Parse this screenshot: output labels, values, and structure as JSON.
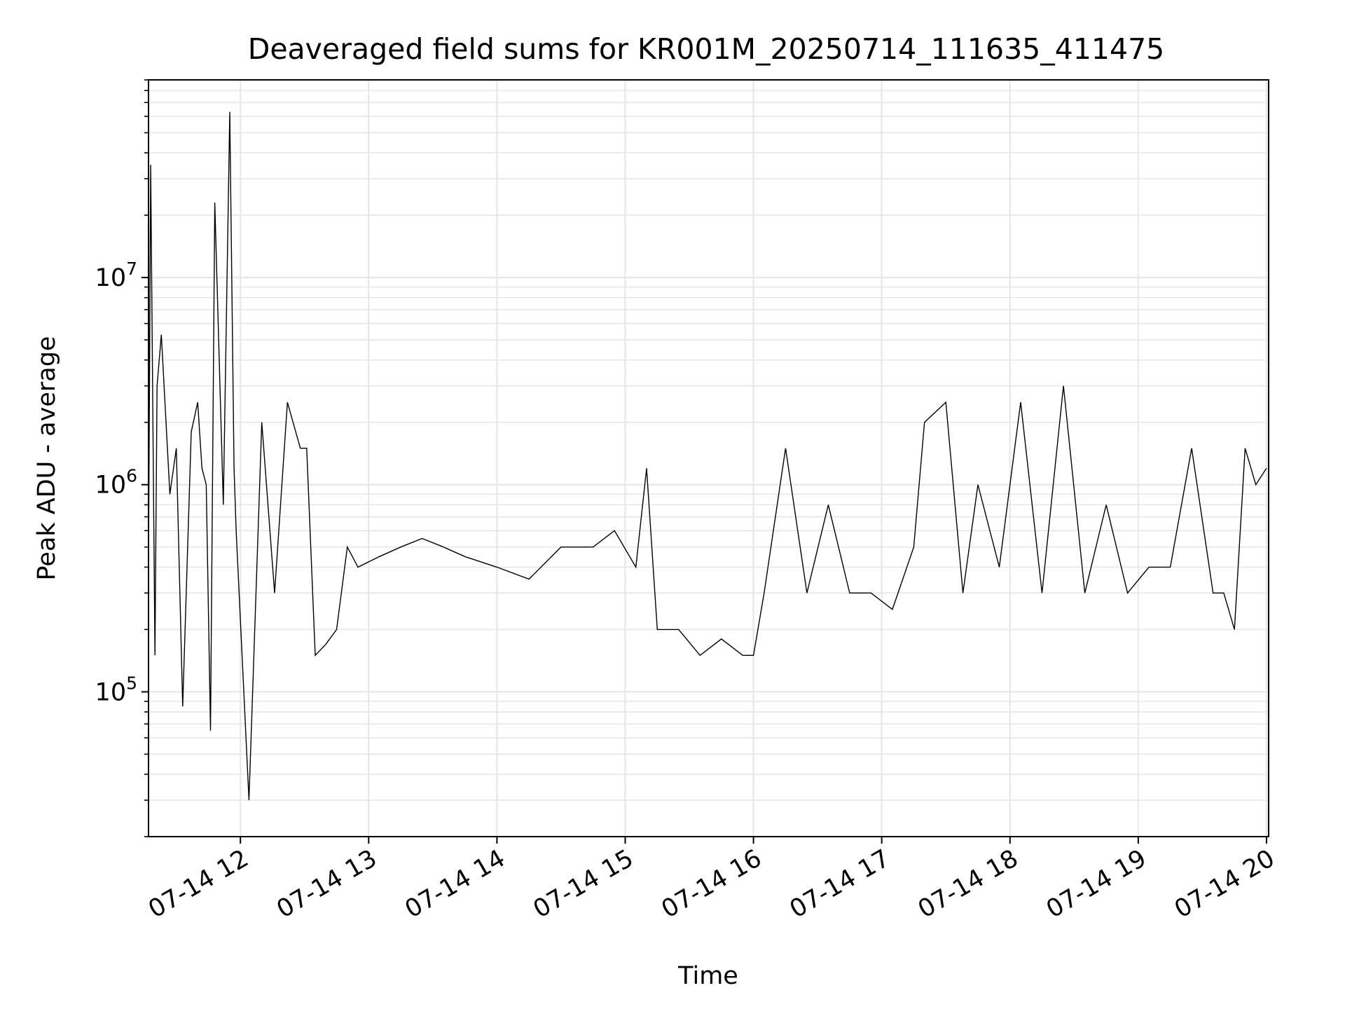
{
  "chart_data": {
    "type": "line",
    "title": "Deaveraged field sums for KR001M_20250714_111635_411475",
    "xlabel": "Time",
    "ylabel": "Peak ADU - average",
    "x_range": [
      "2025-07-14 11:17",
      "2025-07-14 20:01"
    ],
    "y_scale": "log",
    "ylim": [
      20000,
      90000000
    ],
    "grid": true,
    "x_ticks": [
      "07-14 12",
      "07-14 13",
      "07-14 14",
      "07-14 15",
      "07-14 16",
      "07-14 17",
      "07-14 18",
      "07-14 19",
      "07-14 20"
    ],
    "y_ticks": [
      {
        "base": "10",
        "exp": "5",
        "value": 100000
      },
      {
        "base": "10",
        "exp": "6",
        "value": 1000000
      },
      {
        "base": "10",
        "exp": "7",
        "value": 10000000
      }
    ],
    "line_color": "#000000",
    "series": [
      {
        "x": [
          "2025-07-14 11:17",
          "2025-07-14 11:18",
          "2025-07-14 11:20",
          "2025-07-14 11:21",
          "2025-07-14 11:23",
          "2025-07-14 11:27",
          "2025-07-14 11:30",
          "2025-07-14 11:33",
          "2025-07-14 11:37",
          "2025-07-14 11:40",
          "2025-07-14 11:42",
          "2025-07-14 11:44",
          "2025-07-14 11:46",
          "2025-07-14 11:48",
          "2025-07-14 11:52",
          "2025-07-14 11:55",
          "2025-07-14 11:57",
          "2025-07-14 11:58",
          "2025-07-14 12:04",
          "2025-07-14 12:10",
          "2025-07-14 12:16",
          "2025-07-14 12:22",
          "2025-07-14 12:28",
          "2025-07-14 12:31",
          "2025-07-14 12:35",
          "2025-07-14 12:40",
          "2025-07-14 12:45",
          "2025-07-14 12:50",
          "2025-07-14 12:55",
          "2025-07-14 13:05",
          "2025-07-14 13:15",
          "2025-07-14 13:25",
          "2025-07-14 13:35",
          "2025-07-14 13:45",
          "2025-07-14 14:00",
          "2025-07-14 14:15",
          "2025-07-14 14:30",
          "2025-07-14 14:45",
          "2025-07-14 14:55",
          "2025-07-14 15:05",
          "2025-07-14 15:10",
          "2025-07-14 15:15",
          "2025-07-14 15:25",
          "2025-07-14 15:35",
          "2025-07-14 15:45",
          "2025-07-14 15:55",
          "2025-07-14 16:00",
          "2025-07-14 16:05",
          "2025-07-14 16:15",
          "2025-07-14 16:25",
          "2025-07-14 16:35",
          "2025-07-14 16:45",
          "2025-07-14 16:55",
          "2025-07-14 17:05",
          "2025-07-14 17:15",
          "2025-07-14 17:20",
          "2025-07-14 17:30",
          "2025-07-14 17:38",
          "2025-07-14 17:45",
          "2025-07-14 17:55",
          "2025-07-14 18:05",
          "2025-07-14 18:15",
          "2025-07-14 18:25",
          "2025-07-14 18:35",
          "2025-07-14 18:45",
          "2025-07-14 18:55",
          "2025-07-14 19:05",
          "2025-07-14 19:15",
          "2025-07-14 19:25",
          "2025-07-14 19:35",
          "2025-07-14 19:40",
          "2025-07-14 19:45",
          "2025-07-14 19:50",
          "2025-07-14 19:55",
          "2025-07-14 20:00"
        ],
        "y": [
          400000,
          35000000,
          150000,
          3000000,
          5300000,
          900000,
          1500000,
          85000,
          1800000,
          2500000,
          1200000,
          1000000,
          65000,
          23000000,
          800000,
          63000000,
          1200000,
          600000,
          30000,
          2000000,
          300000,
          2500000,
          1500000,
          1500000,
          150000,
          170000,
          200000,
          500000,
          400000,
          450000,
          500000,
          550000,
          500000,
          450000,
          400000,
          350000,
          500000,
          500000,
          600000,
          400000,
          1200000,
          200000,
          200000,
          150000,
          180000,
          150000,
          150000,
          300000,
          1500000,
          300000,
          800000,
          300000,
          300000,
          250000,
          500000,
          2000000,
          2500000,
          300000,
          1000000,
          400000,
          2500000,
          300000,
          3000000,
          300000,
          800000,
          300000,
          400000,
          400000,
          1500000,
          300000,
          300000,
          200000,
          1500000,
          1000000,
          1200000
        ]
      }
    ]
  }
}
